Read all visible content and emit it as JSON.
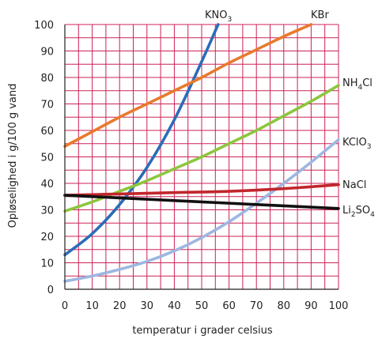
{
  "chart_data": {
    "type": "line",
    "xlabel": "temperatur i grader celsius",
    "ylabel": "Opløselighed i g/100 g vand",
    "xlim": [
      0,
      100
    ],
    "ylim": [
      0,
      100
    ],
    "x_ticks": [
      "0",
      "10",
      "20",
      "30",
      "40",
      "50",
      "60",
      "70",
      "80",
      "90",
      "100"
    ],
    "y_ticks": [
      "0",
      "10",
      "20",
      "30",
      "40",
      "50",
      "60",
      "70",
      "80",
      "90",
      "100"
    ],
    "grid": true,
    "grid_color": "#cc2255",
    "series": [
      {
        "name": "KNO3",
        "label_main": "KNO",
        "label_sub": "3",
        "label_suffix": "",
        "color": "#2b6cb8",
        "x": [
          0,
          10,
          20,
          30,
          40,
          50,
          56
        ],
        "y": [
          13,
          21,
          32,
          46,
          64,
          86,
          100
        ]
      },
      {
        "name": "KBr",
        "label_main": "KBr",
        "label_sub": "",
        "label_suffix": "",
        "color": "#e87a2c",
        "x": [
          0,
          10,
          20,
          30,
          40,
          50,
          60,
          70,
          80,
          90
        ],
        "y": [
          54,
          59.5,
          65,
          70,
          75,
          80,
          85.5,
          90.5,
          95.5,
          100
        ]
      },
      {
        "name": "NH4Cl",
        "label_main": "NH",
        "label_sub": "4",
        "label_suffix": "Cl",
        "color": "#8cc63e",
        "x": [
          0,
          10,
          20,
          30,
          40,
          50,
          60,
          70,
          80,
          90,
          100
        ],
        "y": [
          29.5,
          33,
          37,
          41,
          45.5,
          50,
          55,
          60,
          65.5,
          71,
          77
        ]
      },
      {
        "name": "KClO3",
        "label_main": "KClO",
        "label_sub": "3",
        "label_suffix": "",
        "color": "#9db7e0",
        "x": [
          0,
          10,
          20,
          30,
          40,
          50,
          60,
          70,
          80,
          90,
          100
        ],
        "y": [
          3,
          5,
          7.5,
          10.5,
          14.5,
          19.5,
          25.5,
          32.5,
          40,
          48,
          56.5
        ]
      },
      {
        "name": "NaCl",
        "label_main": "NaCl",
        "label_sub": "",
        "label_suffix": "",
        "color": "#c1262c",
        "x": [
          0,
          20,
          40,
          60,
          80,
          100
        ],
        "y": [
          35.5,
          36,
          36.5,
          37,
          38,
          39.5
        ]
      },
      {
        "name": "Li2SO4",
        "label_main": "Li",
        "label_sub": "2",
        "label_suffix": "SO",
        "label_sub2": "4",
        "color": "#111111",
        "x": [
          0,
          20,
          40,
          60,
          80,
          100
        ],
        "y": [
          35.5,
          34.5,
          33.5,
          32.5,
          31.5,
          30.5
        ]
      }
    ]
  }
}
